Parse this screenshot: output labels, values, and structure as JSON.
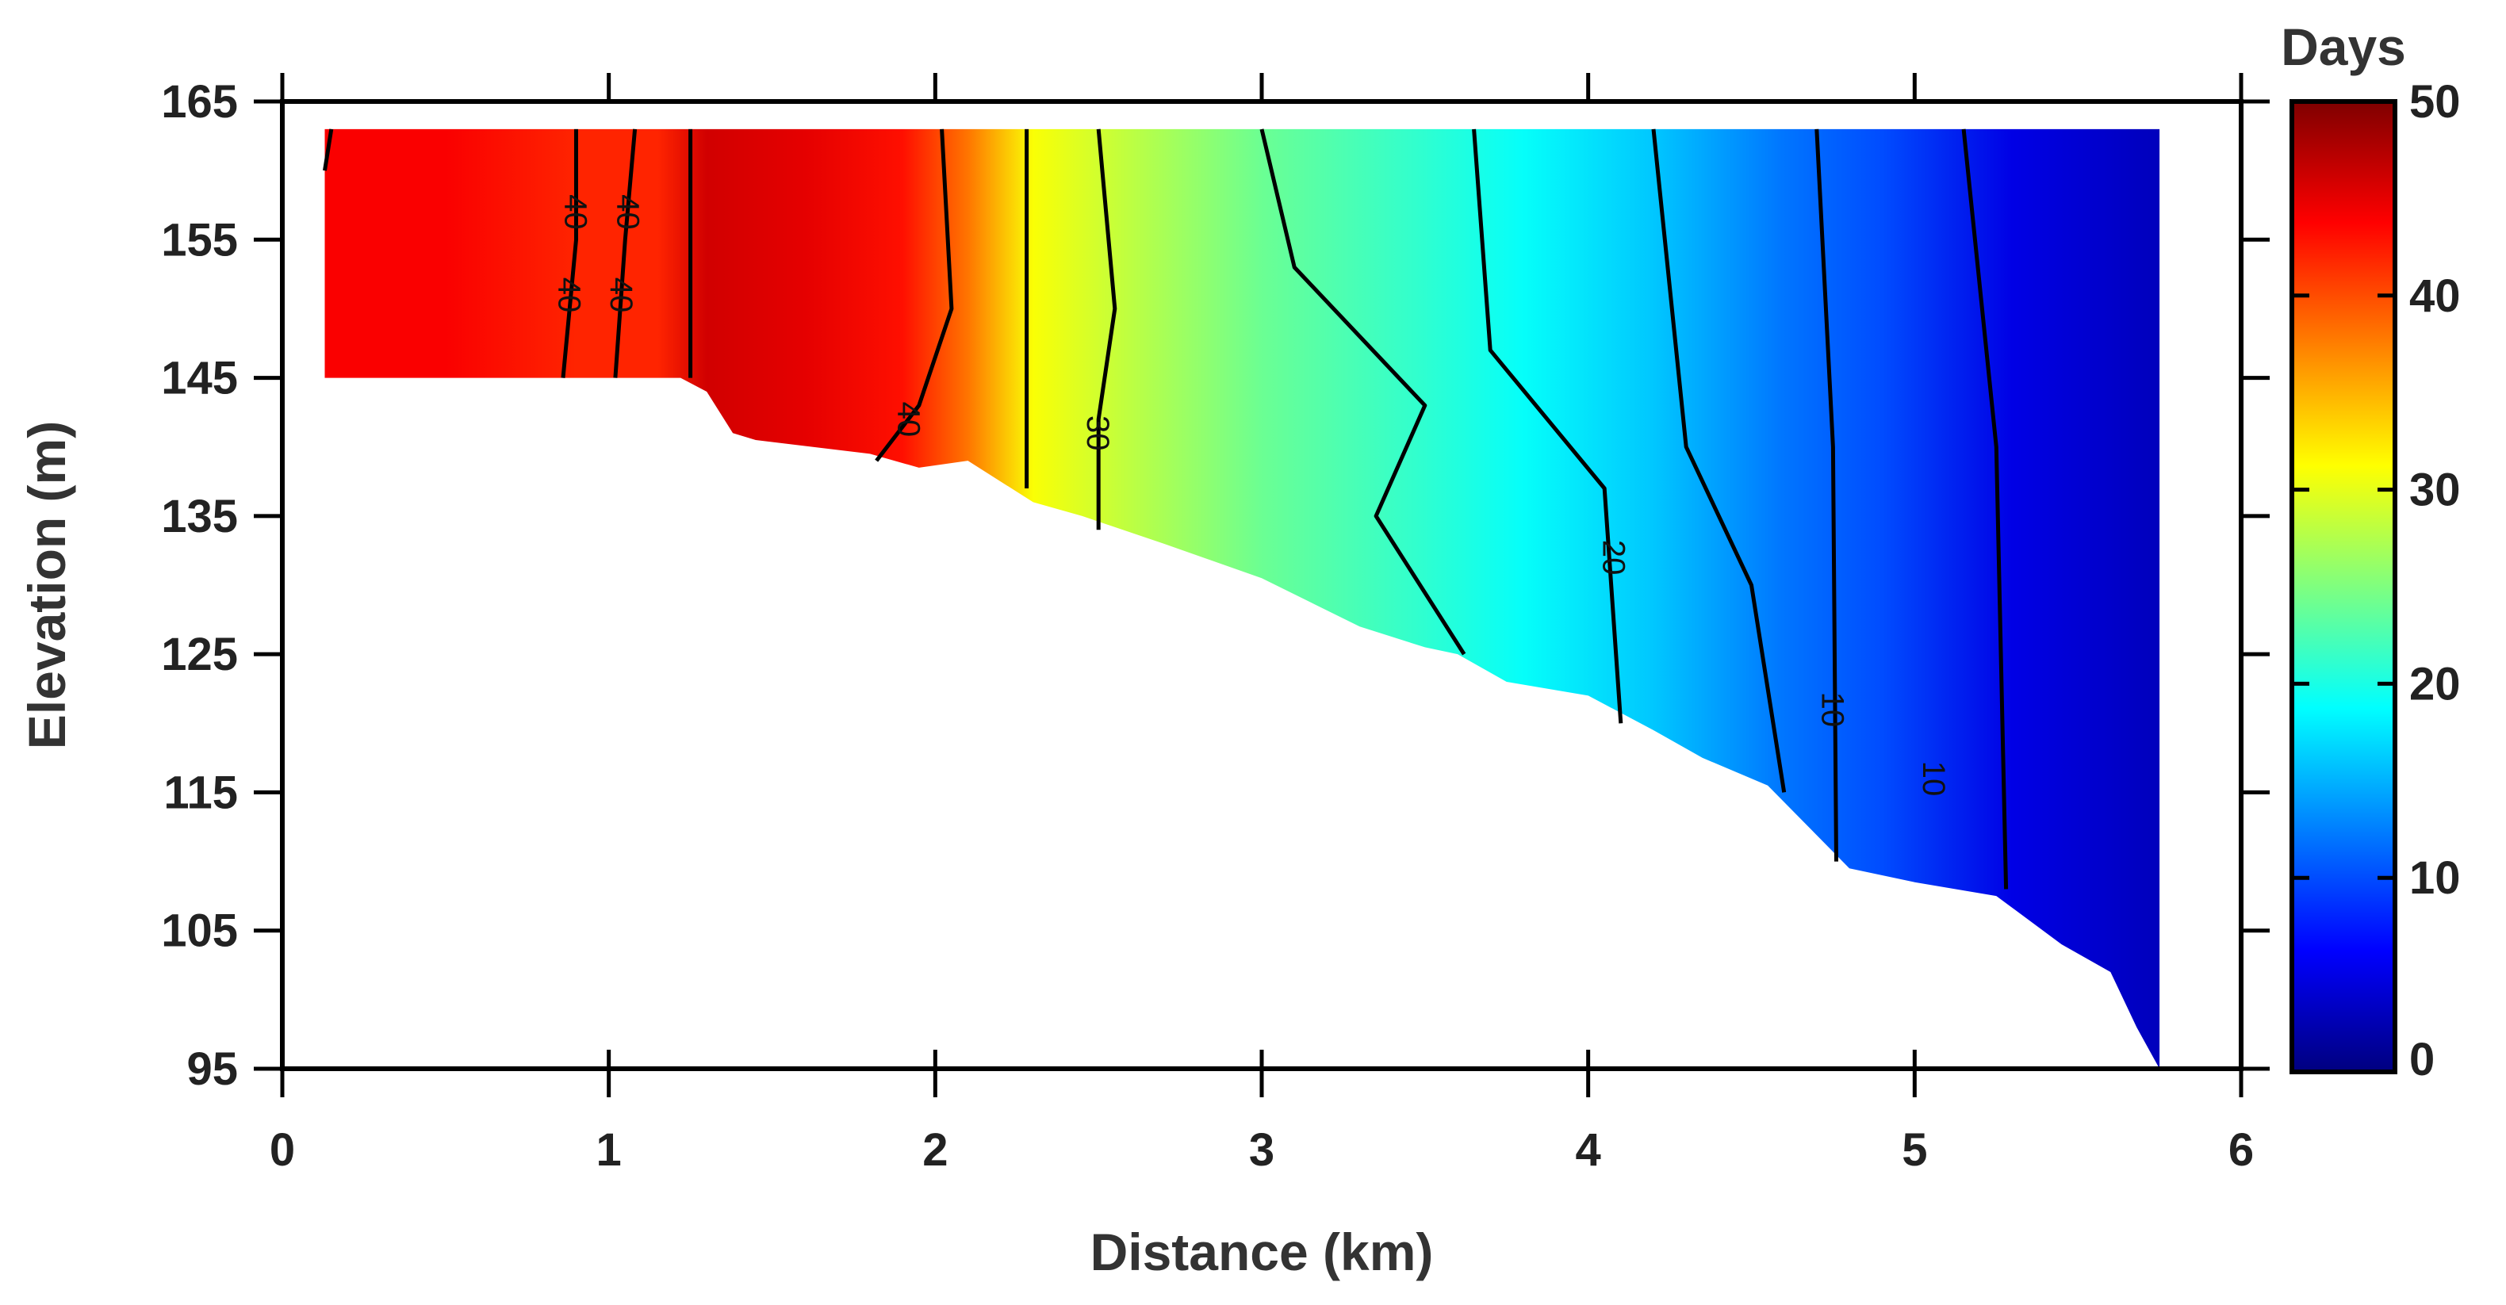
{
  "chart_data": {
    "type": "heatmap",
    "title": "",
    "xlabel": "Distance (km)",
    "ylabel": "Elevation (m)",
    "xlim": [
      0,
      6
    ],
    "ylim": [
      95,
      165
    ],
    "x_ticks": [
      0,
      1,
      2,
      3,
      4,
      5,
      6
    ],
    "y_ticks": [
      95,
      105,
      115,
      125,
      135,
      145,
      155,
      165
    ],
    "colorbar": {
      "label": "Days",
      "range": [
        0,
        50
      ],
      "ticks": [
        0,
        10,
        20,
        30,
        40,
        50
      ],
      "colormap": [
        "#00007f",
        "#0000ff",
        "#007fff",
        "#00ffff",
        "#7fff7f",
        "#ffff00",
        "#ff7f00",
        "#ff0000",
        "#7f0000"
      ]
    },
    "grid": false,
    "surface_elevation": 163,
    "x_extent": [
      0.13,
      5.75
    ],
    "value_profile": [
      {
        "x": 0.13,
        "days": 44
      },
      {
        "x": 0.5,
        "days": 44
      },
      {
        "x": 0.9,
        "days": 42
      },
      {
        "x": 1.15,
        "days": 42
      },
      {
        "x": 1.3,
        "days": 46
      },
      {
        "x": 1.6,
        "days": 45
      },
      {
        "x": 1.9,
        "days": 43
      },
      {
        "x": 2.1,
        "days": 38
      },
      {
        "x": 2.3,
        "days": 31
      },
      {
        "x": 2.5,
        "days": 29
      },
      {
        "x": 3.0,
        "days": 24
      },
      {
        "x": 3.5,
        "days": 21
      },
      {
        "x": 3.8,
        "days": 19
      },
      {
        "x": 4.2,
        "days": 16
      },
      {
        "x": 4.6,
        "days": 12
      },
      {
        "x": 4.9,
        "days": 10
      },
      {
        "x": 5.3,
        "days": 5
      },
      {
        "x": 5.75,
        "days": 3
      }
    ],
    "bed_profile": [
      [
        0.13,
        145
      ],
      [
        1.22,
        145
      ],
      [
        1.3,
        144
      ],
      [
        1.38,
        141
      ],
      [
        1.45,
        140.5
      ],
      [
        1.8,
        139.5
      ],
      [
        1.95,
        138.5
      ],
      [
        2.1,
        139
      ],
      [
        2.3,
        136
      ],
      [
        2.45,
        135
      ],
      [
        2.7,
        133
      ],
      [
        3.0,
        130.5
      ],
      [
        3.3,
        127
      ],
      [
        3.5,
        125.5
      ],
      [
        3.6,
        125
      ],
      [
        3.75,
        123
      ],
      [
        4.0,
        122
      ],
      [
        4.2,
        119.5
      ],
      [
        4.35,
        117.5
      ],
      [
        4.55,
        115.5
      ],
      [
        4.8,
        109.5
      ],
      [
        5.0,
        108.5
      ],
      [
        5.25,
        107.5
      ],
      [
        5.45,
        104
      ],
      [
        5.6,
        102
      ],
      [
        5.68,
        98
      ],
      [
        5.75,
        95
      ],
      [
        5.75,
        163
      ],
      [
        0.13,
        163
      ]
    ],
    "contours": [
      {
        "level": 40,
        "points": [
          [
            0.13,
            160
          ],
          [
            0.15,
            163
          ]
        ]
      },
      {
        "level": 40,
        "points": [
          [
            0.9,
            163
          ],
          [
            0.9,
            155
          ],
          [
            0.86,
            145
          ]
        ]
      },
      {
        "level": 40,
        "points": [
          [
            1.08,
            163
          ],
          [
            1.05,
            155
          ],
          [
            1.02,
            145
          ]
        ]
      },
      {
        "level": 40,
        "points": [
          [
            1.25,
            163
          ],
          [
            1.25,
            145
          ]
        ]
      },
      {
        "level": 40,
        "points": [
          [
            2.02,
            163
          ],
          [
            2.05,
            150
          ],
          [
            1.95,
            143
          ],
          [
            1.82,
            139
          ]
        ]
      },
      {
        "level": 30,
        "points": [
          [
            2.28,
            163
          ],
          [
            2.28,
            137
          ]
        ]
      },
      {
        "level": 30,
        "points": [
          [
            2.5,
            163
          ],
          [
            2.55,
            150
          ],
          [
            2.5,
            142
          ],
          [
            2.5,
            134
          ]
        ]
      },
      {
        "level": 25,
        "points": [
          [
            3.0,
            163
          ],
          [
            3.1,
            153
          ],
          [
            3.5,
            143
          ],
          [
            3.35,
            135
          ],
          [
            3.62,
            125
          ]
        ]
      },
      {
        "level": 20,
        "points": [
          [
            3.65,
            163
          ],
          [
            3.7,
            147
          ],
          [
            4.05,
            137
          ],
          [
            4.1,
            120
          ]
        ]
      },
      {
        "level": 15,
        "points": [
          [
            4.2,
            163
          ],
          [
            4.3,
            140
          ],
          [
            4.5,
            130
          ],
          [
            4.6,
            115
          ]
        ]
      },
      {
        "level": 10,
        "points": [
          [
            4.7,
            163
          ],
          [
            4.75,
            140
          ],
          [
            4.76,
            110
          ]
        ]
      },
      {
        "level": 10,
        "points": [
          [
            5.15,
            163
          ],
          [
            5.25,
            140
          ],
          [
            5.28,
            108
          ]
        ]
      }
    ],
    "contour_labels": [
      {
        "text": "40",
        "x": 0.9,
        "y": 157
      },
      {
        "text": "40",
        "x": 1.06,
        "y": 157
      },
      {
        "text": "40",
        "x": 0.88,
        "y": 151
      },
      {
        "text": "40",
        "x": 1.04,
        "y": 151
      },
      {
        "text": "40",
        "x": 1.92,
        "y": 142
      },
      {
        "text": "30",
        "x": 2.5,
        "y": 141
      },
      {
        "text": "20",
        "x": 4.08,
        "y": 132
      },
      {
        "text": "10",
        "x": 4.75,
        "y": 121
      },
      {
        "text": "10",
        "x": 5.06,
        "y": 116
      }
    ]
  }
}
